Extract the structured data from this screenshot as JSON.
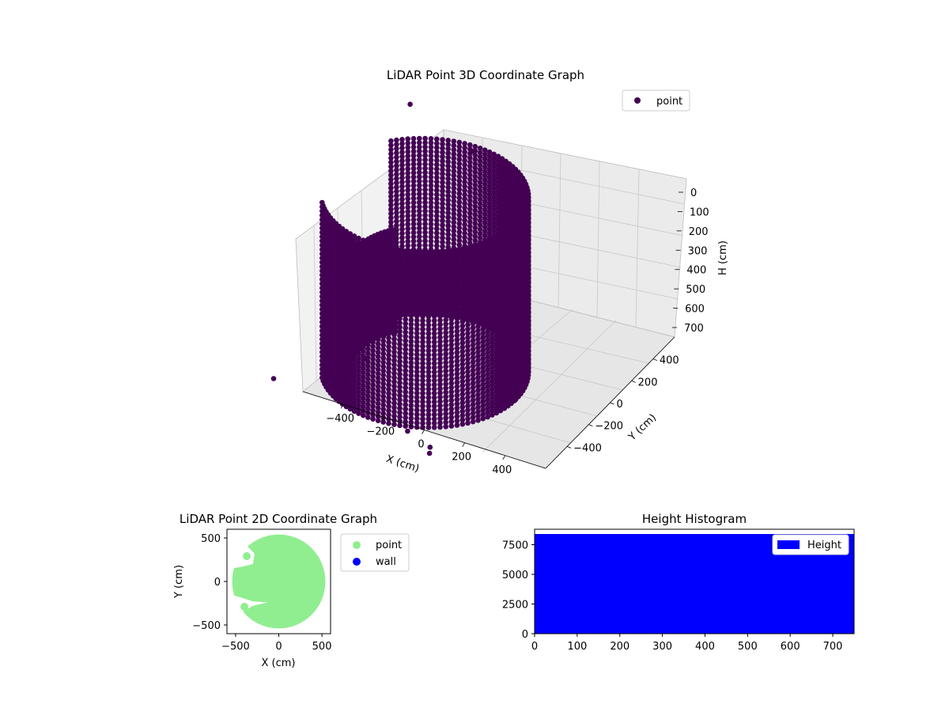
{
  "chart_data": [
    {
      "type": "scatter",
      "projection": "3d",
      "title": "LiDAR Point 3D Coordinate Graph",
      "xlabel": "X (cm)",
      "ylabel": "Y (cm)",
      "zlabel": "H (cm)",
      "xlim": [
        -600,
        600
      ],
      "ylim": [
        -600,
        600
      ],
      "zlim": [
        0,
        750
      ],
      "z_inverted": true,
      "xticks": [
        "−400",
        "−200",
        "0",
        "200",
        "400"
      ],
      "yticks": [
        "−400",
        "−200",
        "0",
        "200",
        "400"
      ],
      "zticks": [
        "0",
        "100",
        "200",
        "300",
        "400",
        "500",
        "600",
        "700"
      ],
      "grid": true,
      "legend": {
        "position": "top-right",
        "entries": [
          "point"
        ]
      },
      "series": [
        {
          "name": "point",
          "color": "#440154",
          "shape": "cylindrical wall of points, radius ~450 cm, heights 0–750 cm, with an opening on the negative-X side",
          "wall_radius": 450,
          "wall_height_range": [
            0,
            750
          ],
          "opening_angle_deg": [
            140,
            215
          ],
          "outliers": [
            {
              "x": -400,
              "y": 600,
              "h": 0
            },
            {
              "x": -500,
              "y": -450,
              "h": 700
            },
            {
              "x": 300,
              "y": -500,
              "h": 750
            },
            {
              "x": 330,
              "y": -560,
              "h": 740
            },
            {
              "x": 200,
              "y": -520,
              "h": 700
            },
            {
              "x": -20,
              "y": 480,
              "h": 40
            }
          ]
        }
      ]
    },
    {
      "type": "scatter",
      "title": "LiDAR Point 2D Coordinate Graph",
      "xlabel": "X (cm)",
      "ylabel": "Y (cm)",
      "xlim": [
        -600,
        600
      ],
      "ylim": [
        -600,
        600
      ],
      "xticks": [
        "−500",
        "0",
        "500"
      ],
      "yticks": [
        "500",
        "0",
        "−500"
      ],
      "legend": {
        "position": "outside-right",
        "entries": [
          "point",
          "wall"
        ]
      },
      "series": [
        {
          "name": "point",
          "color": "#90ee90",
          "radius": 540,
          "gaps": [
            {
              "label": "upper-left notch",
              "points": [
                [
                  -600,
                  560
                ],
                [
                  -520,
                  560
                ],
                [
                  -440,
                  520
                ],
                [
                  -380,
                  420
                ],
                [
                  -280,
                  320
                ],
                [
                  -300,
                  200
                ],
                [
                  -420,
                  170
                ],
                [
                  -600,
                  140
                ]
              ]
            },
            {
              "label": "lower-left notch",
              "points": [
                [
                  -600,
                  -160
                ],
                [
                  -520,
                  -160
                ],
                [
                  -420,
                  -190
                ],
                [
                  -300,
                  -230
                ],
                [
                  -130,
                  -240
                ],
                [
                  -300,
                  -280
                ],
                [
                  -440,
                  -360
                ],
                [
                  -600,
                  -380
                ]
              ]
            }
          ]
        },
        {
          "name": "wall",
          "color": "#0000ff"
        }
      ]
    },
    {
      "type": "bar",
      "title": "Height Histogram",
      "xlabel": "",
      "ylabel": "",
      "xlim": [
        0,
        750
      ],
      "ylim": [
        0,
        8800
      ],
      "xticks": [
        "0",
        "100",
        "200",
        "300",
        "400",
        "500",
        "600",
        "700"
      ],
      "yticks": [
        "0",
        "2500",
        "5000",
        "7500"
      ],
      "legend": {
        "position": "top-right",
        "entries": [
          "Height"
        ]
      },
      "series": [
        {
          "name": "Height",
          "color": "#0000ff",
          "bin_range": [
            0,
            750
          ],
          "counts": [
            8400
          ]
        }
      ]
    }
  ]
}
